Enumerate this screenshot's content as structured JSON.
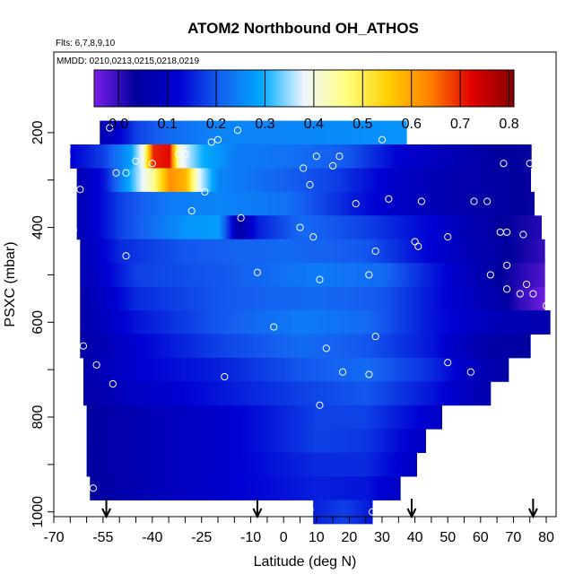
{
  "chart_data": {
    "type": "heatmap",
    "title": "ATOM2 Northbound OH_ATHOS",
    "flights_note": "Flts: 6,7,8,9,10",
    "dates_note": "MMDD: 0210,0213,0215,0218,0219",
    "xlabel": "Latitude (deg N)",
    "ylabel": "PSXC (mbar)",
    "xlim": [
      -70,
      83
    ],
    "ylim": [
      1010,
      30
    ],
    "x_ticks": [
      -70,
      -55,
      -40,
      -25,
      -10,
      0,
      10,
      20,
      30,
      40,
      50,
      60,
      70,
      80
    ],
    "y_ticks": [
      200,
      400,
      600,
      800,
      1000
    ],
    "colorbar": {
      "min": -0.05,
      "max": 0.81,
      "ticks": [
        0.0,
        0.1,
        0.2,
        0.3,
        0.4,
        0.5,
        0.6,
        0.7,
        0.8
      ],
      "colors": [
        "#7b1fe8",
        "#00009c",
        "#0000d2",
        "#1560f0",
        "#00aaff",
        "#eef6ff",
        "#ffff80",
        "#ffd000",
        "#ff8000",
        "#e00000",
        "#880000"
      ]
    },
    "rows": [
      {
        "p": 200,
        "x0": -56,
        "x1": 37,
        "pts": [
          [
            -56,
            0.07
          ],
          [
            -52,
            0.1
          ],
          [
            -45,
            0.18
          ],
          [
            -35,
            0.22
          ],
          [
            -20,
            0.25
          ],
          [
            0,
            0.25
          ],
          [
            20,
            0.26
          ],
          [
            37,
            0.27
          ]
        ]
      },
      {
        "p": 250,
        "x0": -65,
        "x1": 75,
        "pts": [
          [
            -65,
            0.12
          ],
          [
            -55,
            0.18
          ],
          [
            -47,
            0.28
          ],
          [
            -43,
            0.4
          ],
          [
            -40,
            0.7
          ],
          [
            -35,
            0.72
          ],
          [
            -32,
            0.4
          ],
          [
            -25,
            0.3
          ],
          [
            -15,
            0.24
          ],
          [
            0,
            0.23
          ],
          [
            20,
            0.2
          ],
          [
            35,
            0.12
          ],
          [
            50,
            0.08
          ],
          [
            65,
            0.04
          ],
          [
            75,
            0.03
          ]
        ]
      },
      {
        "p": 300,
        "x0": -63,
        "x1": 75,
        "pts": [
          [
            -63,
            0.07
          ],
          [
            -55,
            0.14
          ],
          [
            -47,
            0.3
          ],
          [
            -40,
            0.45
          ],
          [
            -35,
            0.62
          ],
          [
            -30,
            0.58
          ],
          [
            -26,
            0.38
          ],
          [
            -20,
            0.25
          ],
          [
            -5,
            0.22
          ],
          [
            15,
            0.18
          ],
          [
            35,
            0.1
          ],
          [
            55,
            0.06
          ],
          [
            75,
            0.03
          ]
        ]
      },
      {
        "p": 350,
        "x0": -63,
        "x1": 76,
        "pts": [
          [
            -63,
            0.07
          ],
          [
            -50,
            0.18
          ],
          [
            -35,
            0.24
          ],
          [
            -20,
            0.25
          ],
          [
            0,
            0.23
          ],
          [
            20,
            0.15
          ],
          [
            35,
            0.1
          ],
          [
            55,
            0.06
          ],
          [
            76,
            0.03
          ]
        ]
      },
      {
        "p": 400,
        "x0": -63,
        "x1": 78,
        "pts": [
          [
            -63,
            0.07
          ],
          [
            -50,
            0.18
          ],
          [
            -30,
            0.27
          ],
          [
            -20,
            0.28
          ],
          [
            -14,
            0.05
          ],
          [
            -8,
            0.15
          ],
          [
            5,
            0.22
          ],
          [
            25,
            0.18
          ],
          [
            45,
            0.12
          ],
          [
            65,
            0.04
          ],
          [
            78,
            0.01
          ]
        ]
      },
      {
        "p": 450,
        "x0": -62,
        "x1": 79,
        "pts": [
          [
            -62,
            0.07
          ],
          [
            -50,
            0.16
          ],
          [
            -30,
            0.2
          ],
          [
            0,
            0.22
          ],
          [
            25,
            0.2
          ],
          [
            45,
            0.12
          ],
          [
            65,
            0.05
          ],
          [
            79,
            0.0
          ]
        ]
      },
      {
        "p": 500,
        "x0": -62,
        "x1": 79,
        "pts": [
          [
            -62,
            0.07
          ],
          [
            -45,
            0.18
          ],
          [
            -20,
            0.2
          ],
          [
            10,
            0.24
          ],
          [
            30,
            0.22
          ],
          [
            50,
            0.12
          ],
          [
            65,
            0.04
          ],
          [
            79,
            -0.02
          ]
        ]
      },
      {
        "p": 550,
        "x0": -62,
        "x1": 79,
        "pts": [
          [
            -62,
            0.06
          ],
          [
            -45,
            0.16
          ],
          [
            -20,
            0.2
          ],
          [
            10,
            0.22
          ],
          [
            30,
            0.2
          ],
          [
            50,
            0.12
          ],
          [
            65,
            0.06
          ],
          [
            72,
            0.0
          ],
          [
            79,
            -0.04
          ]
        ]
      },
      {
        "p": 600,
        "x0": -62,
        "x1": 81,
        "pts": [
          [
            -62,
            0.06
          ],
          [
            -45,
            0.14
          ],
          [
            -20,
            0.2
          ],
          [
            5,
            0.24
          ],
          [
            25,
            0.22
          ],
          [
            45,
            0.14
          ],
          [
            65,
            0.08
          ],
          [
            81,
            0.06
          ]
        ]
      },
      {
        "p": 650,
        "x0": -62,
        "x1": 75,
        "pts": [
          [
            -62,
            0.05
          ],
          [
            -45,
            0.12
          ],
          [
            -20,
            0.18
          ],
          [
            5,
            0.22
          ],
          [
            25,
            0.2
          ],
          [
            45,
            0.14
          ],
          [
            60,
            0.06
          ],
          [
            75,
            0.04
          ]
        ]
      },
      {
        "p": 700,
        "x0": -61,
        "x1": 68,
        "pts": [
          [
            -61,
            0.06
          ],
          [
            -45,
            0.12
          ],
          [
            -20,
            0.15
          ],
          [
            5,
            0.2
          ],
          [
            25,
            0.22
          ],
          [
            45,
            0.16
          ],
          [
            60,
            0.08
          ],
          [
            68,
            0.05
          ]
        ]
      },
      {
        "p": 750,
        "x0": -61,
        "x1": 63,
        "pts": [
          [
            -61,
            0.05
          ],
          [
            -45,
            0.1
          ],
          [
            -20,
            0.14
          ],
          [
            5,
            0.18
          ],
          [
            25,
            0.2
          ],
          [
            45,
            0.14
          ],
          [
            63,
            0.06
          ]
        ]
      },
      {
        "p": 800,
        "x0": -60,
        "x1": 48,
        "pts": [
          [
            -60,
            0.04
          ],
          [
            -40,
            0.08
          ],
          [
            -15,
            0.12
          ],
          [
            10,
            0.18
          ],
          [
            25,
            0.18
          ],
          [
            48,
            0.1
          ]
        ]
      },
      {
        "p": 850,
        "x0": -60,
        "x1": 43,
        "pts": [
          [
            -60,
            0.04
          ],
          [
            -40,
            0.08
          ],
          [
            -15,
            0.12
          ],
          [
            10,
            0.18
          ],
          [
            25,
            0.17
          ],
          [
            43,
            0.1
          ]
        ]
      },
      {
        "p": 900,
        "x0": -60,
        "x1": 40,
        "pts": [
          [
            -60,
            0.04
          ],
          [
            -40,
            0.08
          ],
          [
            -15,
            0.12
          ],
          [
            10,
            0.16
          ],
          [
            25,
            0.16
          ],
          [
            40,
            0.1
          ]
        ]
      },
      {
        "p": 950,
        "x0": -59,
        "x1": 35,
        "pts": [
          [
            -59,
            0.04
          ],
          [
            -40,
            0.08
          ],
          [
            -15,
            0.12
          ],
          [
            10,
            0.15
          ],
          [
            25,
            0.14
          ],
          [
            35,
            0.1
          ]
        ]
      },
      {
        "p": 1000,
        "x0": 9,
        "x1": 27,
        "pts": [
          [
            9,
            0.15
          ],
          [
            18,
            0.18
          ],
          [
            27,
            0.14
          ]
        ]
      }
    ],
    "points": [
      [
        -59,
        200
      ],
      [
        -53,
        190
      ],
      [
        -66,
        230
      ],
      [
        -66,
        250
      ],
      [
        -62,
        320
      ],
      [
        -45,
        260
      ],
      [
        -40,
        265
      ],
      [
        -51,
        285
      ],
      [
        -48,
        285
      ],
      [
        -32,
        245
      ],
      [
        -30,
        245
      ],
      [
        -22,
        220
      ],
      [
        -20,
        215
      ],
      [
        -14,
        195
      ],
      [
        -24,
        325
      ],
      [
        -28,
        365
      ],
      [
        -13,
        380
      ],
      [
        -8,
        495
      ],
      [
        -3,
        610
      ],
      [
        -18,
        715
      ],
      [
        -52,
        730
      ],
      [
        -48,
        460
      ],
      [
        -57,
        690
      ],
      [
        -58,
        950
      ],
      [
        -64,
        405
      ],
      [
        -61,
        650
      ],
      [
        6,
        275
      ],
      [
        8,
        310
      ],
      [
        10,
        250
      ],
      [
        15,
        270
      ],
      [
        17,
        250
      ],
      [
        22,
        350
      ],
      [
        26,
        500
      ],
      [
        28,
        630
      ],
      [
        28,
        450
      ],
      [
        30,
        215
      ],
      [
        32,
        340
      ],
      [
        11,
        510
      ],
      [
        13,
        655
      ],
      [
        18,
        705
      ],
      [
        26,
        710
      ],
      [
        11,
        775
      ],
      [
        5,
        400
      ],
      [
        9,
        420
      ],
      [
        40,
        430
      ],
      [
        41,
        440
      ],
      [
        42,
        345
      ],
      [
        50,
        685
      ],
      [
        50,
        420
      ],
      [
        58,
        345
      ],
      [
        62,
        345
      ],
      [
        57,
        705
      ],
      [
        63,
        500
      ],
      [
        66,
        410
      ],
      [
        68,
        410
      ],
      [
        68,
        480
      ],
      [
        68,
        530
      ],
      [
        72,
        540
      ],
      [
        73,
        415
      ],
      [
        74,
        520
      ],
      [
        75,
        265
      ],
      [
        76,
        540
      ],
      [
        80,
        565
      ],
      [
        67,
        265
      ],
      [
        8,
        995
      ],
      [
        27,
        1000
      ]
    ],
    "arrows": [
      -54,
      -8,
      39,
      76
    ]
  }
}
